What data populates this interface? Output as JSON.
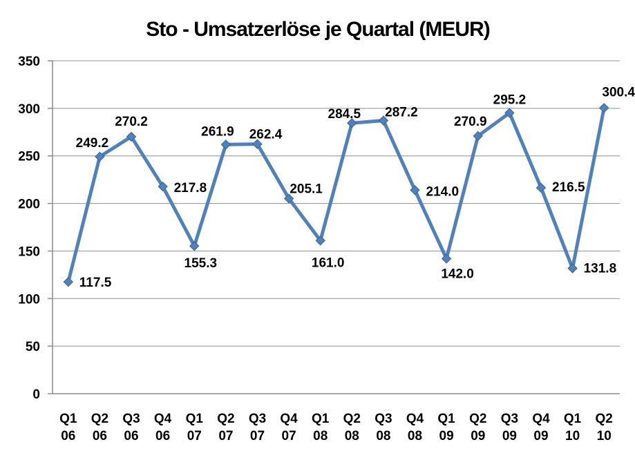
{
  "title": "Sto - Umsatzerlöse je Quartal (MEUR)",
  "chart_data": {
    "type": "line",
    "title": "Sto - Umsatzerlöse je Quartal (MEUR)",
    "categories": [
      [
        "Q1",
        "06"
      ],
      [
        "Q2",
        "06"
      ],
      [
        "Q3",
        "06"
      ],
      [
        "Q4",
        "06"
      ],
      [
        "Q1",
        "07"
      ],
      [
        "Q2",
        "07"
      ],
      [
        "Q3",
        "07"
      ],
      [
        "Q4",
        "07"
      ],
      [
        "Q1",
        "08"
      ],
      [
        "Q2",
        "08"
      ],
      [
        "Q3",
        "08"
      ],
      [
        "Q4",
        "08"
      ],
      [
        "Q1",
        "09"
      ],
      [
        "Q2",
        "09"
      ],
      [
        "Q3",
        "09"
      ],
      [
        "Q4",
        "09"
      ],
      [
        "Q1",
        "10"
      ],
      [
        "Q2",
        "10"
      ]
    ],
    "values": [
      117.5,
      249.2,
      270.2,
      217.8,
      155.3,
      261.9,
      262.4,
      205.1,
      161.0,
      284.5,
      287.2,
      214.0,
      142.0,
      270.9,
      295.2,
      216.5,
      131.8,
      300.4
    ],
    "xlabel": "",
    "ylabel": "",
    "ylim": [
      0,
      350
    ],
    "ytick_step": 50,
    "grid": true,
    "legend": "none",
    "marker": "diamond",
    "data_labels_visible": true,
    "data_label_format": "0.0",
    "colors": {
      "line": "#4F81BD",
      "marker": "#4F81BD",
      "marker_edge": "#3A6491",
      "grid": "#8E8E8E",
      "axis": "#8A8A8A",
      "text": "#000000",
      "background": "#FFFFFF"
    },
    "data_label_placement": [
      [
        16,
        7,
        "start"
      ],
      [
        -11,
        -14,
        "middle"
      ],
      [
        0,
        -16,
        "middle"
      ],
      [
        16,
        8,
        "start"
      ],
      [
        9,
        31,
        "middle"
      ],
      [
        -12,
        -13,
        "middle"
      ],
      [
        12,
        -8,
        "middle"
      ],
      [
        25,
        -8,
        "middle"
      ],
      [
        11,
        38,
        "middle"
      ],
      [
        -11,
        -7,
        "middle"
      ],
      [
        26,
        -6,
        "middle"
      ],
      [
        16,
        8,
        "start"
      ],
      [
        16,
        28,
        "middle"
      ],
      [
        -11,
        -15,
        "middle"
      ],
      [
        0,
        -13,
        "middle"
      ],
      [
        16,
        5,
        "start"
      ],
      [
        16,
        6,
        "start"
      ],
      [
        21,
        -17,
        "middle"
      ]
    ]
  }
}
